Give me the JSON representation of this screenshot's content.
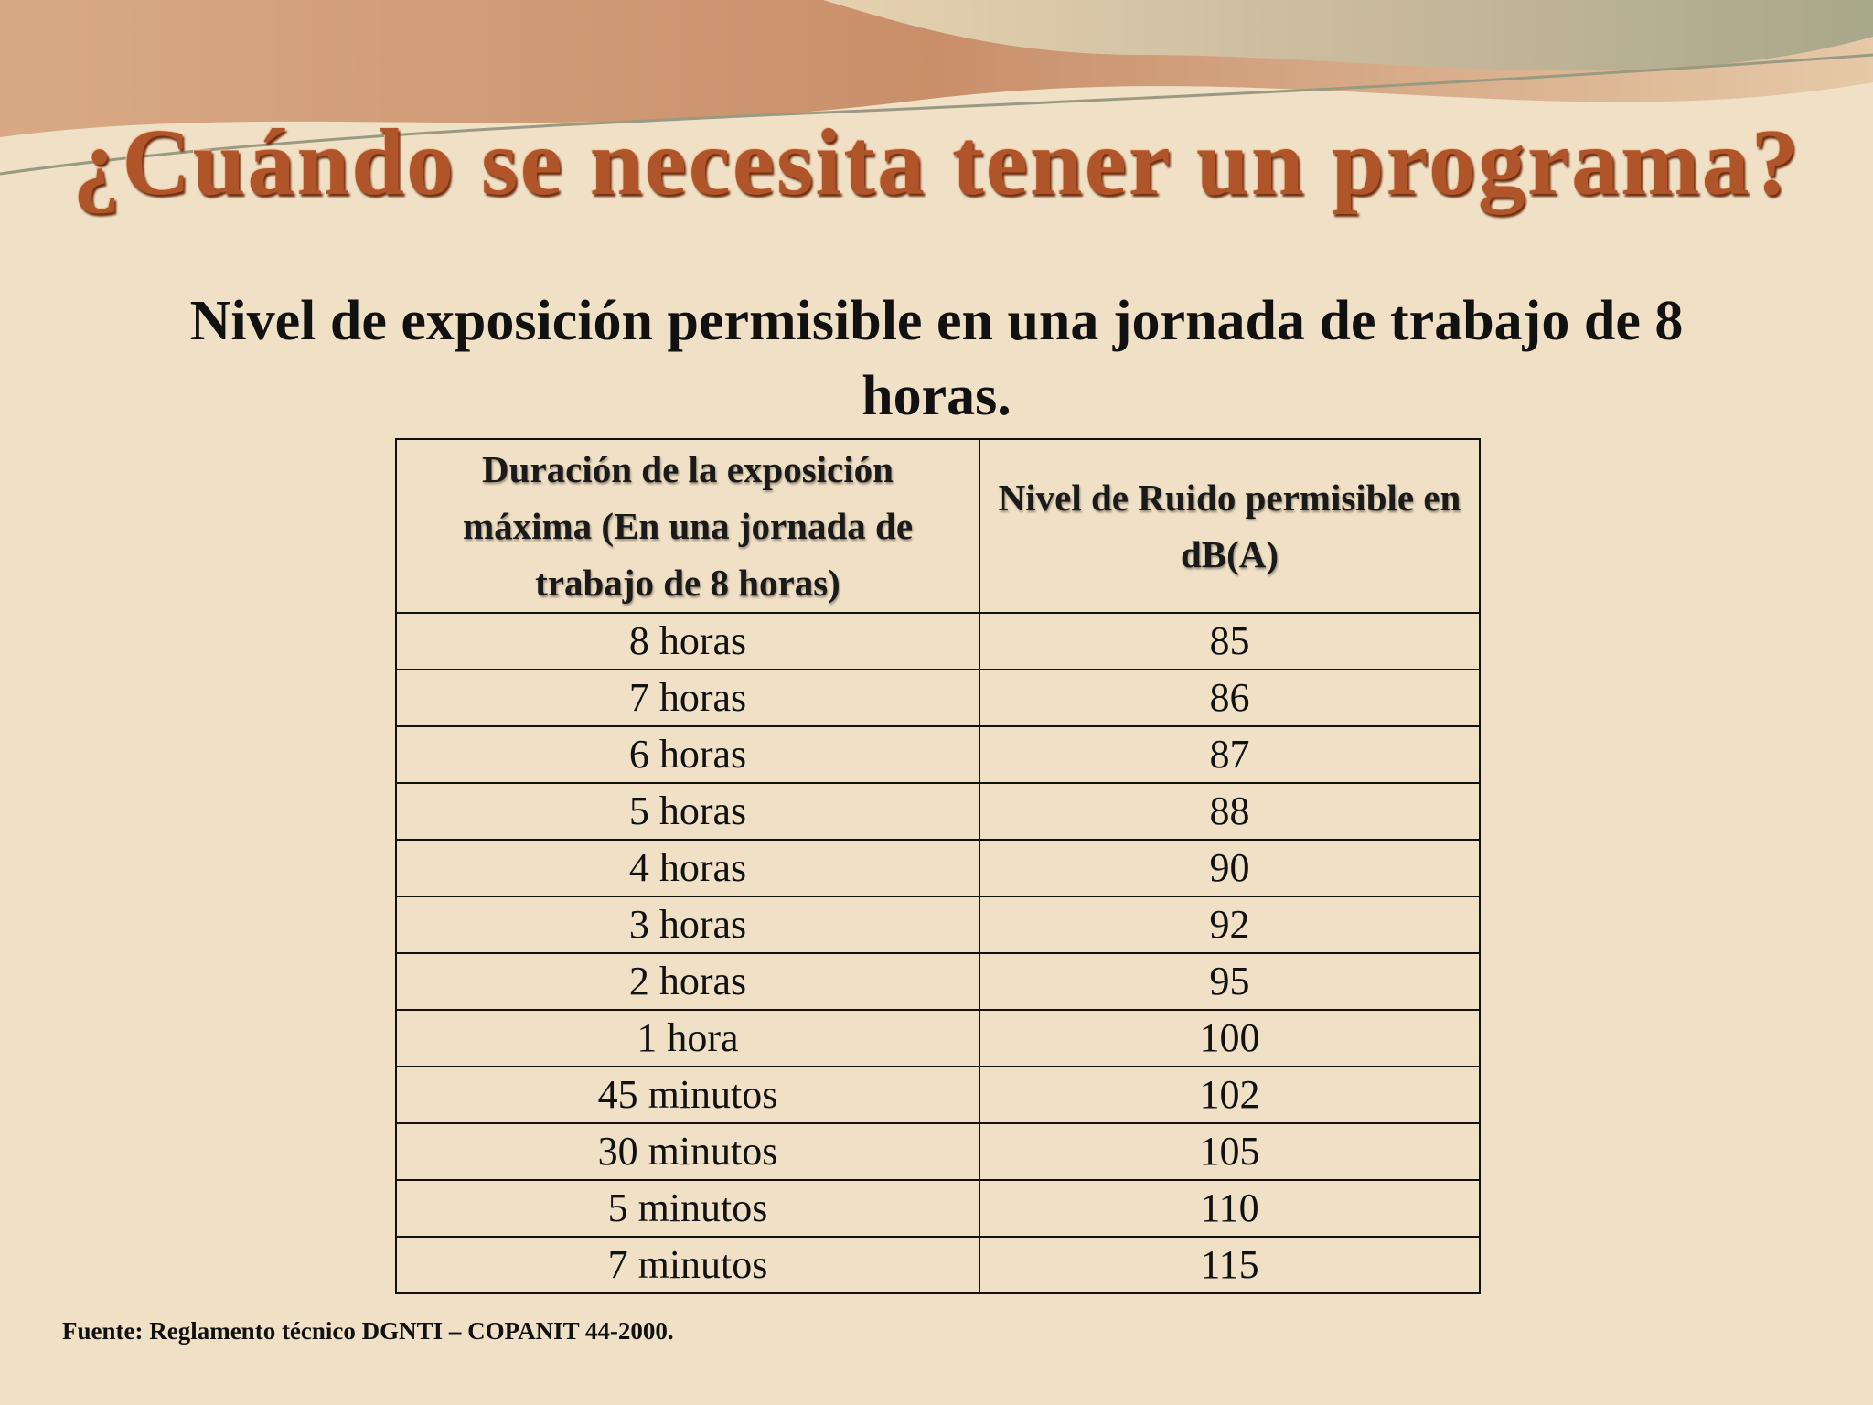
{
  "header": {
    "title": "¿Cuándo se necesita tener un programa?"
  },
  "subtitle": "Nivel de exposición permisible en una jornada de trabajo de 8 horas.",
  "table": {
    "columns": [
      "Duración de la exposición máxima (En una jornada de trabajo de 8 horas)",
      "Nivel de Ruido permisible en dB(A)"
    ],
    "rows": [
      [
        "8 horas",
        85
      ],
      [
        "7 horas",
        86
      ],
      [
        "6 horas",
        87
      ],
      [
        "5 horas",
        88
      ],
      [
        "4 horas",
        90
      ],
      [
        "3 horas",
        92
      ],
      [
        "2 horas",
        95
      ],
      [
        "1 hora",
        100
      ],
      [
        "45 minutos",
        102
      ],
      [
        "30 minutos",
        105
      ],
      [
        "5 minutos",
        110
      ],
      [
        "7 minutos",
        115
      ]
    ]
  },
  "source": "Fuente: Reglamento técnico DGNTI – COPANIT 44-2000."
}
